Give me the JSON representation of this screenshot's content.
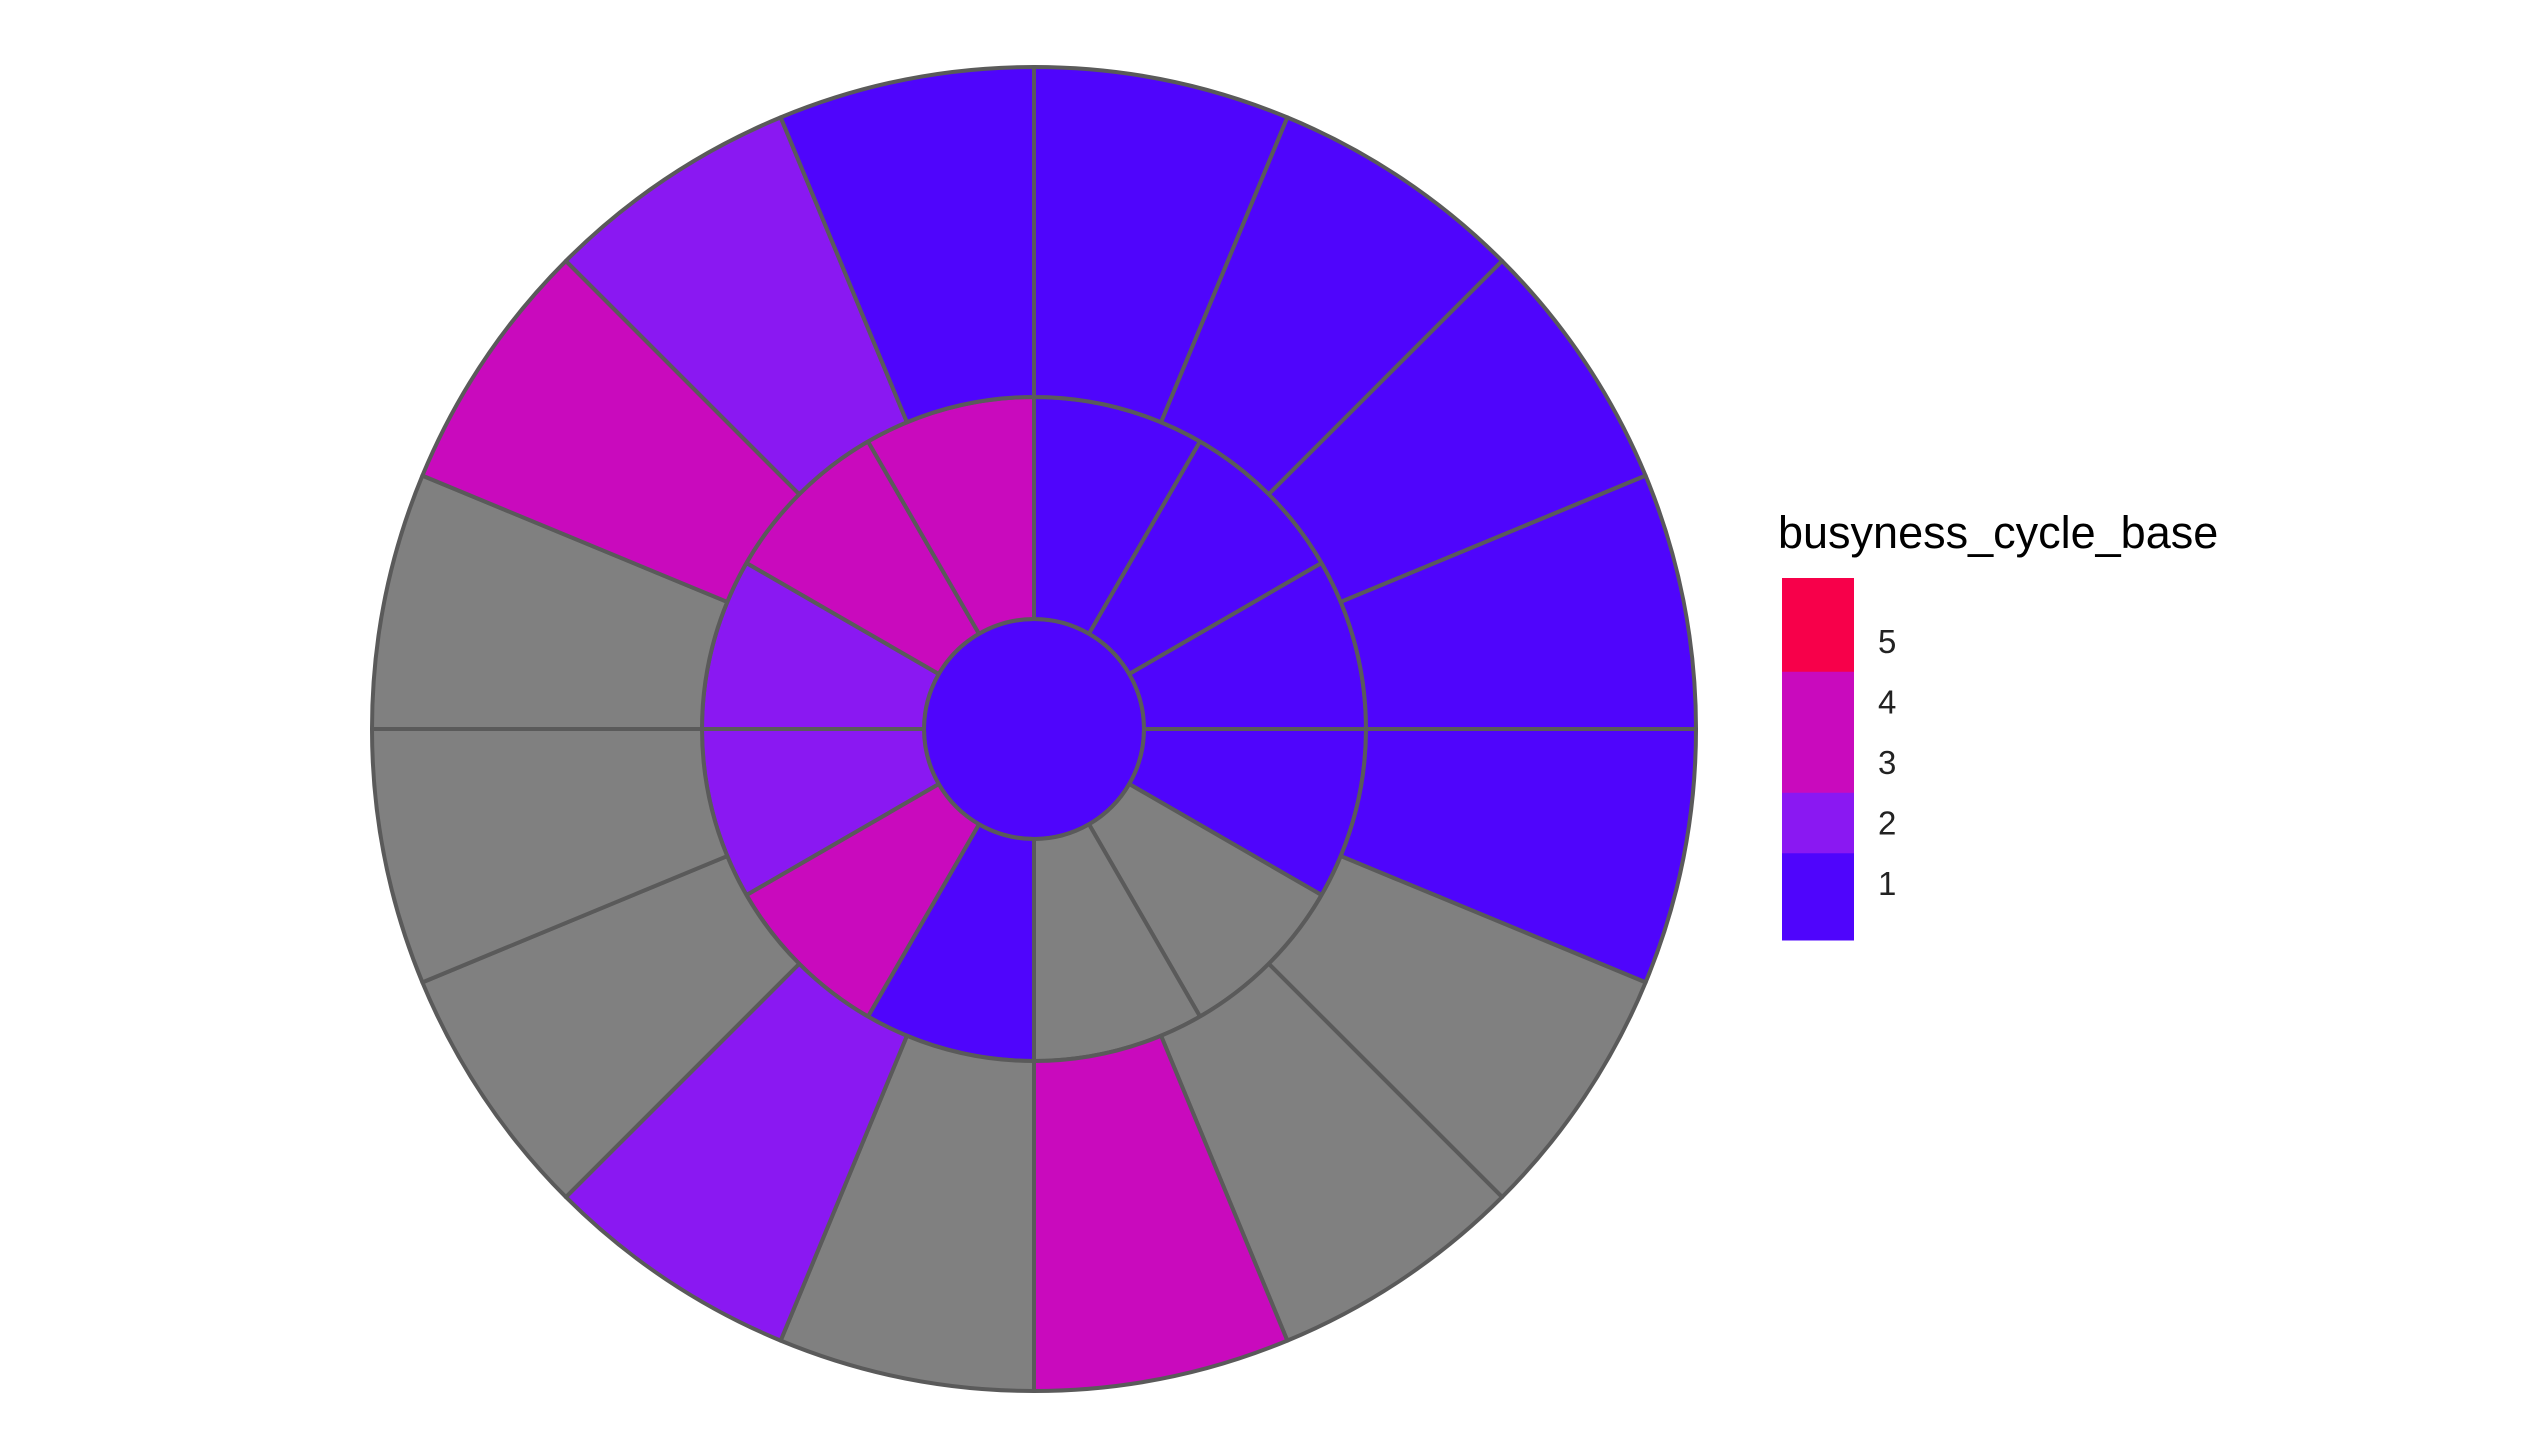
{
  "chart_data": {
    "type": "radial-heatmap",
    "title": "",
    "fill_variable": "busyness_cycle_base",
    "na_color": "#808080",
    "rings": [
      {
        "name": "center",
        "cells": [
          1
        ]
      },
      {
        "name": "middle",
        "cells": [
          1,
          1,
          1,
          1,
          null,
          null,
          1,
          4,
          2,
          2,
          4,
          4
        ]
      },
      {
        "name": "outer",
        "cells": [
          1,
          1,
          1,
          1,
          1,
          null,
          null,
          4,
          null,
          2,
          null,
          null,
          null,
          4,
          2,
          1
        ]
      }
    ],
    "legend": {
      "title": "busyness_cycle_base",
      "placement": "right",
      "breaks": [
        5,
        4,
        3,
        2,
        1
      ],
      "labels": [
        "5",
        "4",
        "3",
        "2",
        "1"
      ],
      "range": [
        1,
        5
      ],
      "colors": {
        "1": "#4f05fc",
        "2": "#8a18f2",
        "3": "#c90abd",
        "4": "#c90abd",
        "5": "#f7004a"
      }
    }
  }
}
